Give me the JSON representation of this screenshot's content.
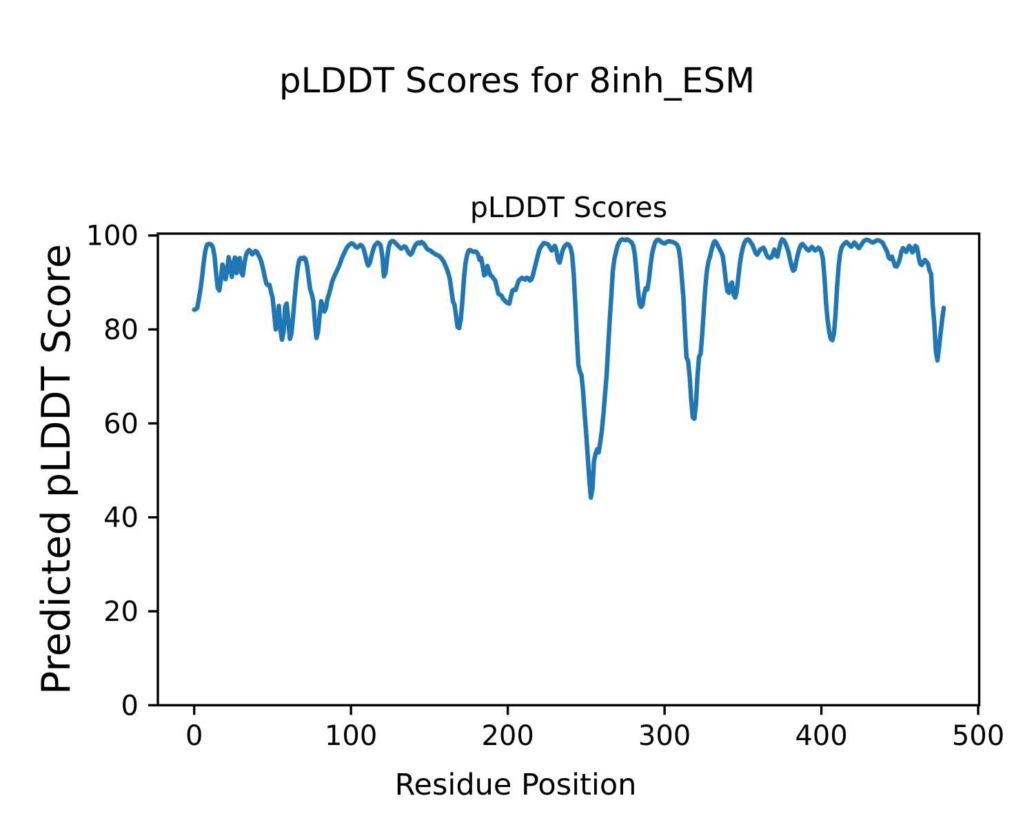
{
  "figure": {
    "suptitle": "pLDDT Scores for 8inh_ESM",
    "axes_title": "pLDDT Scores",
    "xlabel": "Residue Position",
    "ylabel": "Predicted pLDDT Score"
  },
  "chart_data": {
    "type": "line",
    "title": "pLDDT Scores",
    "suptitle": "pLDDT Scores for 8inh_ESM",
    "xlabel": "Residue Position",
    "ylabel": "Predicted pLDDT Score",
    "line_color": "#1f77b4",
    "background_color": "#ffffff",
    "grid": false,
    "legend": "none",
    "xlim": [
      -24,
      501
    ],
    "ylim": [
      0,
      100
    ],
    "xticks": [
      0,
      100,
      200,
      300,
      400,
      500
    ],
    "yticks": [
      0,
      20,
      40,
      60,
      80,
      100
    ],
    "x_start": 0,
    "x_step": 1,
    "n_points": 479,
    "values": [
      84.2,
      84.3,
      84.6,
      86.5,
      88.5,
      91.0,
      94.0,
      96.5,
      97.9,
      98.2,
      98.2,
      98.0,
      97.4,
      95.5,
      92.0,
      88.9,
      88.3,
      90.5,
      93.8,
      93.0,
      90.7,
      92.5,
      95.4,
      93.5,
      91.2,
      94.0,
      95.3,
      92.0,
      94.8,
      95.2,
      92.2,
      91.5,
      94.0,
      95.8,
      96.5,
      96.9,
      96.6,
      96.0,
      96.3,
      96.7,
      96.5,
      95.8,
      95.2,
      94.2,
      92.8,
      91.2,
      89.8,
      89.4,
      89.5,
      88.0,
      86.8,
      83.5,
      80.0,
      81.5,
      85.0,
      80.0,
      77.8,
      79.5,
      84.8,
      85.5,
      82.0,
      78.0,
      79.0,
      82.5,
      86.5,
      90.0,
      93.0,
      94.8,
      95.2,
      95.0,
      95.3,
      95.0,
      93.5,
      91.0,
      88.5,
      87.5,
      86.0,
      81.5,
      78.2,
      79.5,
      83.0,
      86.0,
      85.0,
      83.8,
      84.5,
      86.5,
      87.5,
      88.8,
      90.2,
      91.0,
      91.8,
      92.5,
      93.2,
      94.0,
      95.0,
      95.8,
      96.5,
      97.2,
      97.7,
      98.0,
      98.3,
      98.3,
      98.0,
      97.6,
      97.4,
      97.7,
      98.0,
      97.8,
      97.2,
      96.0,
      94.5,
      93.6,
      94.2,
      95.5,
      96.8,
      97.8,
      98.2,
      98.5,
      98.3,
      97.8,
      95.5,
      91.3,
      92.0,
      95.0,
      97.5,
      98.5,
      98.8,
      98.8,
      98.5,
      98.2,
      97.8,
      97.5,
      97.2,
      97.4,
      97.7,
      97.5,
      96.8,
      96.2,
      95.9,
      96.3,
      97.2,
      97.9,
      98.3,
      98.5,
      98.3,
      98.6,
      98.4,
      98.0,
      97.4,
      97.0,
      96.9,
      96.7,
      96.4,
      96.2,
      96.0,
      95.8,
      95.7,
      95.4,
      95.0,
      94.5,
      93.8,
      93.0,
      92.0,
      90.8,
      88.5,
      86.0,
      85.3,
      83.0,
      80.5,
      80.3,
      82.0,
      86.0,
      90.5,
      94.0,
      95.8,
      96.8,
      96.9,
      96.7,
      96.5,
      96.6,
      96.5,
      96.0,
      94.8,
      95.2,
      93.5,
      91.5,
      91.8,
      93.5,
      92.5,
      91.5,
      91.3,
      90.8,
      90.4,
      89.0,
      87.6,
      87.4,
      87.2,
      86.5,
      86.2,
      85.8,
      85.6,
      85.5,
      87.0,
      88.3,
      88.5,
      88.4,
      89.5,
      90.4,
      90.7,
      91.0,
      90.8,
      90.6,
      91.0,
      90.9,
      90.4,
      90.6,
      91.5,
      92.9,
      94.2,
      95.5,
      96.8,
      97.5,
      98.0,
      98.4,
      98.3,
      98.2,
      98.0,
      97.4,
      96.8,
      97.4,
      97.8,
      96.8,
      94.8,
      94.2,
      95.5,
      96.8,
      97.6,
      98.0,
      98.2,
      98.0,
      97.4,
      96.0,
      92.0,
      86.0,
      79.0,
      72.5,
      71.0,
      70.3,
      67.0,
      62.0,
      58.0,
      53.0,
      48.0,
      44.2,
      46.0,
      52.0,
      53.5,
      54.5,
      53.8,
      56.0,
      58.5,
      62.0,
      66.0,
      70.0,
      76.0,
      82.0,
      86.8,
      92.4,
      95.0,
      96.5,
      97.8,
      98.5,
      99.0,
      99.2,
      99.1,
      99.0,
      99.2,
      99.0,
      98.8,
      98.5,
      97.8,
      96.0,
      92.5,
      88.5,
      85.5,
      84.8,
      85.2,
      87.5,
      88.8,
      88.5,
      90.5,
      93.5,
      96.0,
      97.5,
      98.5,
      99.0,
      99.1,
      98.9,
      98.6,
      98.4,
      98.3,
      98.5,
      98.7,
      98.8,
      98.7,
      98.6,
      98.5,
      98.3,
      98.0,
      97.2,
      95.0,
      91.0,
      86.8,
      80.0,
      74.0,
      73.3,
      70.0,
      65.0,
      61.3,
      61.0,
      64.0,
      70.0,
      74.2,
      74.8,
      79.0,
      84.0,
      89.0,
      92.5,
      94.5,
      95.5,
      97.0,
      98.2,
      98.8,
      98.5,
      97.8,
      97.2,
      96.5,
      95.8,
      93.5,
      90.5,
      88.2,
      87.8,
      89.5,
      90.0,
      87.5,
      86.8,
      88.0,
      91.0,
      94.0,
      96.0,
      97.5,
      98.5,
      99.0,
      99.2,
      99.0,
      98.5,
      98.0,
      97.2,
      96.3,
      95.9,
      96.4,
      97.0,
      97.2,
      97.4,
      96.8,
      95.9,
      95.4,
      95.2,
      95.3,
      96.0,
      97.0,
      95.8,
      95.5,
      97.0,
      98.5,
      99.2,
      99.0,
      98.4,
      97.5,
      96.5,
      95.0,
      93.5,
      92.5,
      92.8,
      94.5,
      96.0,
      97.2,
      98.0,
      98.2,
      97.8,
      97.4,
      97.0,
      96.8,
      97.2,
      97.6,
      97.2,
      96.8,
      97.0,
      97.4,
      97.2,
      96.5,
      95.0,
      91.0,
      85.5,
      82.0,
      79.5,
      78.0,
      77.7,
      79.0,
      83.0,
      89.0,
      93.5,
      96.2,
      97.5,
      98.0,
      98.4,
      98.6,
      98.3,
      97.9,
      97.6,
      98.0,
      98.5,
      98.2,
      97.6,
      97.3,
      97.8,
      98.3,
      98.8,
      99.0,
      99.1,
      99.0,
      98.8,
      98.6,
      98.5,
      98.7,
      98.9,
      99.0,
      98.9,
      98.7,
      98.5,
      97.8,
      97.2,
      96.5,
      95.3,
      95.0,
      95.5,
      94.5,
      93.5,
      93.4,
      94.0,
      95.0,
      96.5,
      97.3,
      97.0,
      96.5,
      97.0,
      97.8,
      97.4,
      96.4,
      96.8,
      97.8,
      97.5,
      95.5,
      94.0,
      93.7,
      94.3,
      94.8,
      94.4,
      94.0,
      92.5,
      91.8,
      85.4,
      81.5,
      75.5,
      73.4,
      76.0,
      79.0,
      82.0,
      84.6
    ]
  }
}
